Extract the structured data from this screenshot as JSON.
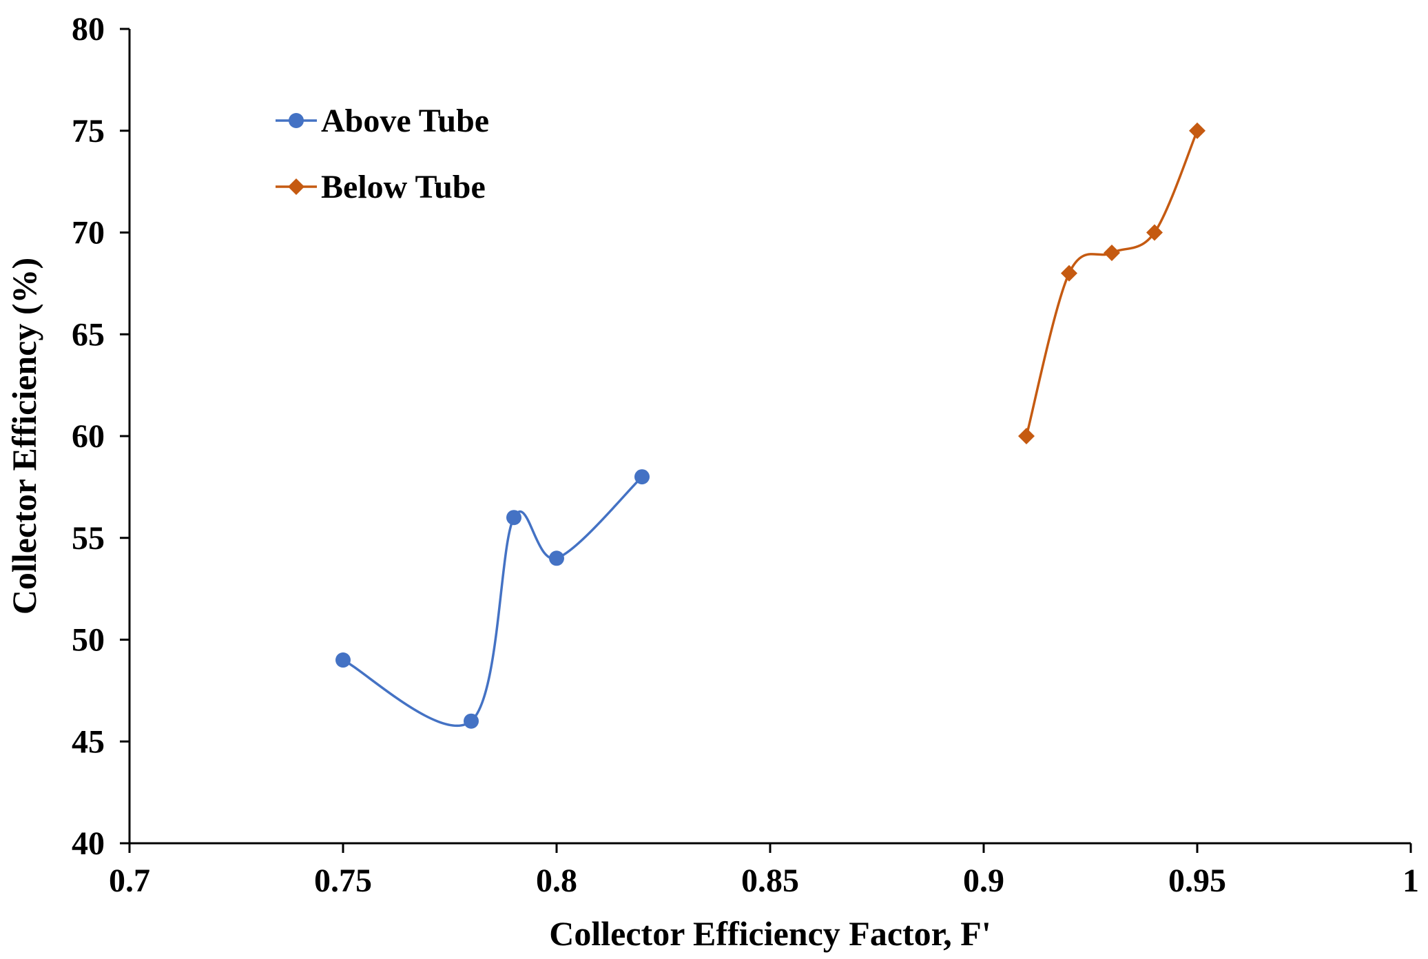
{
  "chart_data": {
    "type": "scatter",
    "xlabel": "Collector Efficiency Factor, F'",
    "ylabel": "Collector Efficiency (%)",
    "xlim": [
      0.7,
      1.0
    ],
    "ylim": [
      40,
      80
    ],
    "xticks": [
      {
        "value": 0.7,
        "label": "0.7"
      },
      {
        "value": 0.75,
        "label": "0.75"
      },
      {
        "value": 0.8,
        "label": "0.8"
      },
      {
        "value": 0.85,
        "label": "0.85"
      },
      {
        "value": 0.9,
        "label": "0.9"
      },
      {
        "value": 0.95,
        "label": "0.95"
      },
      {
        "value": 1.0,
        "label": "1"
      }
    ],
    "yticks": [
      {
        "value": 40,
        "label": "40"
      },
      {
        "value": 45,
        "label": "45"
      },
      {
        "value": 50,
        "label": "50"
      },
      {
        "value": 55,
        "label": "55"
      },
      {
        "value": 60,
        "label": "60"
      },
      {
        "value": 65,
        "label": "65"
      },
      {
        "value": 70,
        "label": "70"
      },
      {
        "value": 75,
        "label": "75"
      },
      {
        "value": 80,
        "label": "80"
      }
    ],
    "grid": false,
    "legend_position": "top-left",
    "smooth_lines": true,
    "series": [
      {
        "name": "Above Tube",
        "color": "#4472C4",
        "marker": "circle",
        "x": [
          0.75,
          0.78,
          0.79,
          0.8,
          0.82
        ],
        "y": [
          49,
          46,
          56,
          54,
          58
        ]
      },
      {
        "name": "Below Tube",
        "color": "#C55A11",
        "marker": "diamond",
        "x": [
          0.91,
          0.92,
          0.93,
          0.94,
          0.95
        ],
        "y": [
          60,
          68,
          69,
          70,
          75
        ]
      }
    ]
  }
}
